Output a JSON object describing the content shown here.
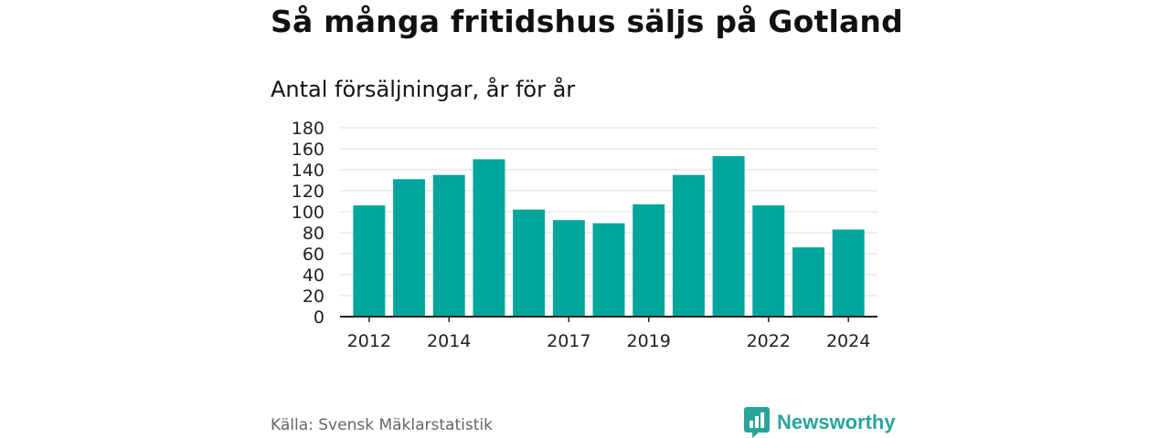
{
  "title": "Så många fritidshus säljs på Gotland",
  "subtitle": "Antal försäljningar, år för år",
  "source": "Källa: Svensk Mäklarstatistik",
  "brand": "Newsworthy",
  "colors": {
    "bar": "#00a59b",
    "brand": "#2aa59a"
  },
  "chart_data": {
    "type": "bar",
    "categories": [
      "2012",
      "2013",
      "2014",
      "2015",
      "2016",
      "2017",
      "2018",
      "2019",
      "2020",
      "2021",
      "2022",
      "2023",
      "2024"
    ],
    "values": [
      106,
      131,
      135,
      150,
      102,
      92,
      89,
      107,
      135,
      153,
      106,
      66,
      83
    ],
    "x_tick_labels": [
      "2012",
      "2014",
      "2017",
      "2019",
      "2022",
      "2024"
    ],
    "y_ticks": [
      0,
      20,
      40,
      60,
      80,
      100,
      120,
      140,
      160,
      180
    ],
    "ylim": [
      0,
      180
    ],
    "grid": true,
    "title": "Så många fritidshus säljs på Gotland",
    "subtitle": "Antal försäljningar, år för år",
    "xlabel": "",
    "ylabel": ""
  }
}
